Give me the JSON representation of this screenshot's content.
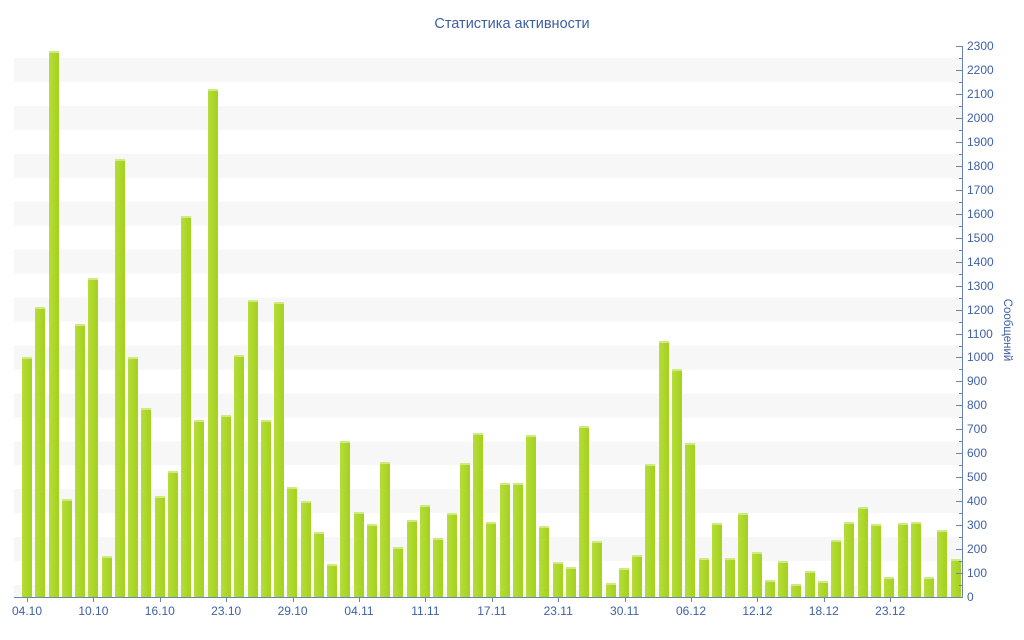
{
  "title": "Статистика активности",
  "y_axis": {
    "label": "Сообщений",
    "tick_labels": [
      "0",
      "100",
      "200",
      "300",
      "400",
      "500",
      "600",
      "700",
      "800",
      "900",
      "1000",
      "1100",
      "1200",
      "1300",
      "1400",
      "1500",
      "1600",
      "1700",
      "1800",
      "1900",
      "2000",
      "2100",
      "2200",
      "2300"
    ]
  },
  "x_axis": {
    "tick_labels": [
      "04.10",
      "10.10",
      "16.10",
      "23.10",
      "29.10",
      "04.11",
      "11.11",
      "17.11",
      "23.11",
      "30.11",
      "06.12",
      "12.12",
      "18.12",
      "23.12"
    ]
  },
  "chart_data": {
    "type": "bar",
    "title": "Статистика активности",
    "ylabel": "Сообщений",
    "ylim": [
      0,
      2300
    ],
    "y_major_step": 100,
    "y_minor_step": 50,
    "grid": "horizontal-bands",
    "legend": "none",
    "bar_color": "#a9d629",
    "band_color": "#f7f7f7",
    "axis_color": "#6b82b4",
    "label_color": "#3e61a6",
    "x_tick_labels": [
      "04.10",
      "10.10",
      "16.10",
      "23.10",
      "29.10",
      "04.11",
      "11.11",
      "17.11",
      "23.11",
      "30.11",
      "06.12",
      "12.12",
      "18.12",
      "23.12"
    ],
    "x_tick_bar_indices": [
      0,
      5,
      10,
      15,
      20,
      25,
      30,
      35,
      40,
      45,
      50,
      55,
      60,
      65
    ],
    "values": [
      1000,
      1210,
      2280,
      410,
      1140,
      1330,
      170,
      1830,
      1000,
      790,
      420,
      525,
      1590,
      740,
      2120,
      760,
      1010,
      1240,
      740,
      1230,
      460,
      400,
      270,
      140,
      650,
      355,
      305,
      565,
      210,
      320,
      385,
      245,
      350,
      560,
      685,
      315,
      475,
      475,
      675,
      295,
      145,
      125,
      715,
      235,
      60,
      120,
      175,
      555,
      1070,
      950,
      645,
      165,
      310,
      165,
      350,
      190,
      70,
      150,
      55,
      110,
      65,
      240,
      315,
      375,
      305,
      85,
      310,
      315,
      85,
      280,
      160
    ]
  }
}
